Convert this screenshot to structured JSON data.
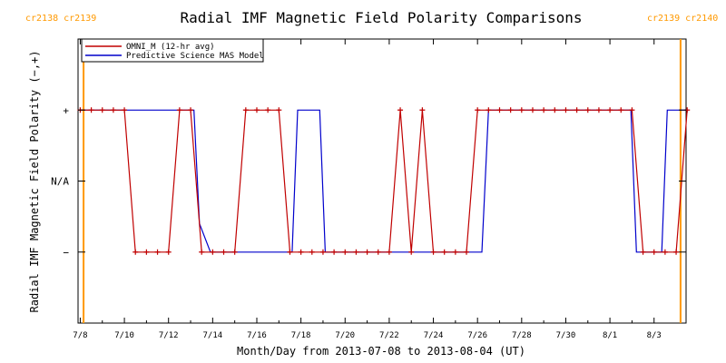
{
  "colors": {
    "omni": "#c00000",
    "mas": "#0000cc",
    "carrington": "#ff9900",
    "axis": "#000000"
  },
  "carrington_labels": {
    "left": "cr2138 cr2139",
    "right": "cr2139 cr2140"
  },
  "chart_data": {
    "type": "line",
    "title": "Radial IMF Magnetic Field Polarity Comparisons",
    "xlabel": "Month/Day from 2013-07-08 to 2013-08-04 (UT)",
    "ylabel": "Radial IMF Magnetic Field Polarity (−,+)",
    "x_unit": "days",
    "xlim": [
      -0.1,
      27.45
    ],
    "ylim": [
      -2,
      2
    ],
    "x_ticks": [
      {
        "x": 0,
        "label": "7/8"
      },
      {
        "x": 2,
        "label": "7/10"
      },
      {
        "x": 4,
        "label": "7/12"
      },
      {
        "x": 6,
        "label": "7/14"
      },
      {
        "x": 8,
        "label": "7/16"
      },
      {
        "x": 10,
        "label": "7/18"
      },
      {
        "x": 12,
        "label": "7/20"
      },
      {
        "x": 14,
        "label": "7/22"
      },
      {
        "x": 16,
        "label": "7/24"
      },
      {
        "x": 18,
        "label": "7/26"
      },
      {
        "x": 20,
        "label": "7/28"
      },
      {
        "x": 22,
        "label": "7/30"
      },
      {
        "x": 24,
        "label": "8/1"
      },
      {
        "x": 26,
        "label": "8/3"
      }
    ],
    "y_ticks": [
      {
        "y": 1,
        "label": "+"
      },
      {
        "y": 0,
        "label": "N/A"
      },
      {
        "y": -1,
        "label": "−"
      }
    ],
    "carrington_x": [
      0.15,
      27.2
    ],
    "legend": {
      "placement": "top-left"
    },
    "series": [
      {
        "name": "OMNI_M (12-hr avg)",
        "color_key": "omni",
        "markers": true,
        "x": [
          0.0,
          0.5,
          1.0,
          1.5,
          2.0,
          2.5,
          3.0,
          3.5,
          4.0,
          4.5,
          5.0,
          5.5,
          6.0,
          6.5,
          7.0,
          7.5,
          8.0,
          8.5,
          9.0,
          9.5,
          10.0,
          10.5,
          11.0,
          11.5,
          12.0,
          12.5,
          13.0,
          13.5,
          14.0,
          14.5,
          15.0,
          15.5,
          16.0,
          16.5,
          17.0,
          17.5,
          18.0,
          18.5,
          19.0,
          19.5,
          20.0,
          20.5,
          21.0,
          21.5,
          22.0,
          22.5,
          23.0,
          23.5,
          24.0,
          24.5,
          25.0,
          25.5,
          26.0,
          26.5,
          27.0,
          27.5
        ],
        "y": [
          1,
          1,
          1,
          1,
          1,
          -1,
          -1,
          -1,
          -1,
          1,
          1,
          -1,
          -1,
          -1,
          -1,
          1,
          1,
          1,
          1,
          -1,
          -1,
          -1,
          -1,
          -1,
          -1,
          -1,
          -1,
          -1,
          -1,
          1,
          -1,
          1,
          -1,
          -1,
          -1,
          -1,
          1,
          1,
          1,
          1,
          1,
          1,
          1,
          1,
          1,
          1,
          1,
          1,
          1,
          1,
          1,
          -1,
          -1,
          -1,
          -1,
          1
        ]
      },
      {
        "name": "Predictive Science MAS Model",
        "color_key": "mas",
        "markers": false,
        "x": [
          0.0,
          5.15,
          5.4,
          5.9,
          9.6,
          9.85,
          10.85,
          11.1,
          18.2,
          18.5,
          24.95,
          25.2,
          26.35,
          26.6,
          27.5
        ],
        "y": [
          1,
          1,
          -0.6,
          -1,
          -1,
          1,
          1,
          -1,
          -1,
          1,
          1,
          -1,
          -1,
          1,
          1
        ]
      }
    ]
  }
}
